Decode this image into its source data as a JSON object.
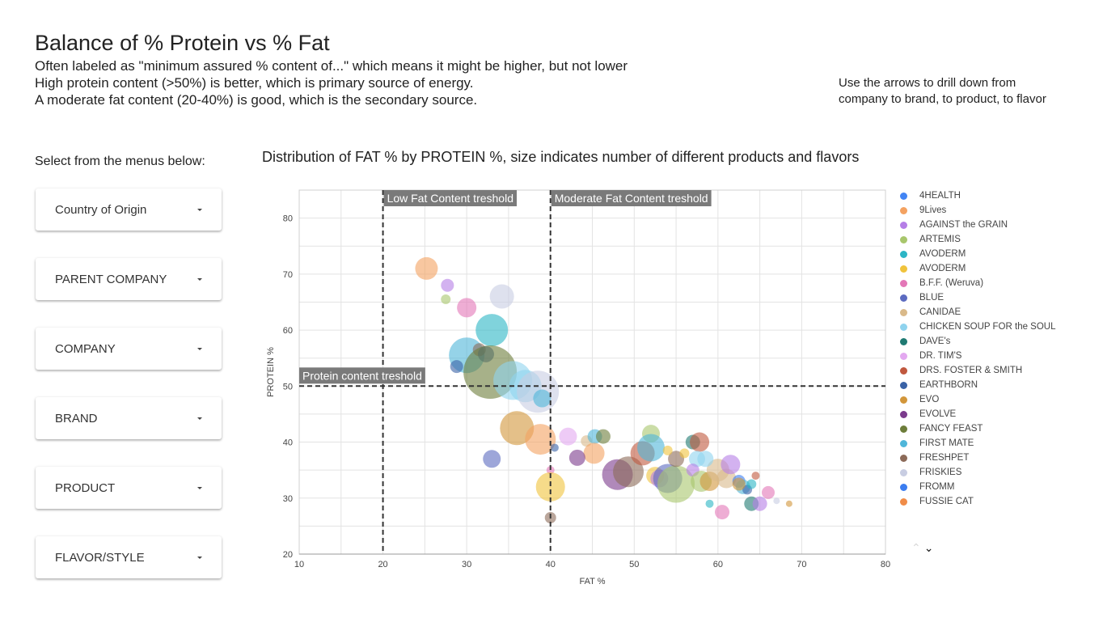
{
  "header": {
    "title": "Balance of % Protein vs % Fat",
    "line1": "Often labeled as \"minimum assured % content of...\" which means it might be higher, but not lower",
    "line2": "High protein content (>50%) is better, which is primary source of energy.",
    "line3": "A moderate fat content (20-40%) is good, which is the secondary source.",
    "hint1": "Use the arrows to drill down from",
    "hint2": "company to brand, to product, to flavor"
  },
  "filters": {
    "label": "Select from the menus below:",
    "items": [
      "Country of Origin",
      "PARENT COMPANY",
      "COMPANY",
      "BRAND",
      "PRODUCT",
      "FLAVOR/STYLE"
    ]
  },
  "chart_data": {
    "type": "scatter",
    "title": "Distribution of FAT % by PROTEIN %, size indicates number of different products and flavors",
    "xlabel": "FAT %",
    "ylabel": "PROTEIN %",
    "xlim": [
      10,
      80
    ],
    "ylim": [
      20,
      85
    ],
    "xticks": [
      10,
      20,
      30,
      40,
      50,
      60,
      70,
      80
    ],
    "yticks": [
      20,
      30,
      40,
      50,
      60,
      70,
      80
    ],
    "grid": true,
    "legend": "right",
    "reference_lines": [
      {
        "axis": "x",
        "value": 20,
        "label": "Low Fat Content treshold"
      },
      {
        "axis": "x",
        "value": 40,
        "label": "Moderate Fat Content treshold"
      },
      {
        "axis": "y",
        "value": 50,
        "label": "Protein content treshold"
      }
    ],
    "series": [
      {
        "name": "4HEALTH",
        "color": "#4285f4"
      },
      {
        "name": "9Lives",
        "color": "#f4a261"
      },
      {
        "name": "AGAINST the GRAIN",
        "color": "#b57ee6"
      },
      {
        "name": "ARTEMIS",
        "color": "#a8c66c"
      },
      {
        "name": "AVODERM",
        "color": "#2cb5c5"
      },
      {
        "name": "AVODERM",
        "color": "#f0c33c"
      },
      {
        "name": "B.F.F. (Weruva)",
        "color": "#e377b7"
      },
      {
        "name": "BLUE",
        "color": "#5c6bc0"
      },
      {
        "name": "CANIDAE",
        "color": "#d9b98a"
      },
      {
        "name": "CHICKEN SOUP FOR the SOUL",
        "color": "#8fd3ee"
      },
      {
        "name": "DAVE's",
        "color": "#1f7a72"
      },
      {
        "name": "DR. TIM'S",
        "color": "#e3a8f0"
      },
      {
        "name": "DRS. FOSTER & SMITH",
        "color": "#c0583e"
      },
      {
        "name": "EARTHBORN",
        "color": "#3a62a6"
      },
      {
        "name": "EVO",
        "color": "#d2963a"
      },
      {
        "name": "EVOLVE",
        "color": "#7b3b8c"
      },
      {
        "name": "FANCY FEAST",
        "color": "#6d7d3a"
      },
      {
        "name": "FIRST MATE",
        "color": "#4fb6d9"
      },
      {
        "name": "FRESHPET",
        "color": "#8c6a58"
      },
      {
        "name": "FRISKIES",
        "color": "#c8cde2"
      },
      {
        "name": "FROMM",
        "color": "#3b7df0"
      },
      {
        "name": "FUSSIE CAT",
        "color": "#f08c48"
      }
    ],
    "points": [
      {
        "x": 25.2,
        "y": 71,
        "s": 14,
        "c": 1
      },
      {
        "x": 27.7,
        "y": 68,
        "s": 8,
        "c": 2
      },
      {
        "x": 27.5,
        "y": 65.5,
        "s": 6,
        "c": 3
      },
      {
        "x": 30.0,
        "y": 64,
        "s": 12,
        "c": 6
      },
      {
        "x": 34.2,
        "y": 66,
        "s": 15,
        "c": 19
      },
      {
        "x": 33.0,
        "y": 60,
        "s": 20,
        "c": 4
      },
      {
        "x": 30.0,
        "y": 55.5,
        "s": 22,
        "c": 17
      },
      {
        "x": 31.5,
        "y": 56.5,
        "s": 8,
        "c": 18
      },
      {
        "x": 32.3,
        "y": 55.7,
        "s": 10,
        "c": 13
      },
      {
        "x": 28.8,
        "y": 53.5,
        "s": 8,
        "c": 13
      },
      {
        "x": 32.8,
        "y": 52.5,
        "s": 33,
        "c": 16
      },
      {
        "x": 35.5,
        "y": 51,
        "s": 24,
        "c": 9
      },
      {
        "x": 37.0,
        "y": 50,
        "s": 20,
        "c": 9
      },
      {
        "x": 38.5,
        "y": 49,
        "s": 26,
        "c": 19
      },
      {
        "x": 39.0,
        "y": 47.8,
        "s": 11,
        "c": 17
      },
      {
        "x": 36.0,
        "y": 42.5,
        "s": 21,
        "c": 14
      },
      {
        "x": 38.8,
        "y": 40.5,
        "s": 19,
        "c": 1
      },
      {
        "x": 40.5,
        "y": 39,
        "s": 5,
        "c": 13
      },
      {
        "x": 33.0,
        "y": 37,
        "s": 11,
        "c": 7
      },
      {
        "x": 40.0,
        "y": 35,
        "s": 5,
        "c": 6
      },
      {
        "x": 40.0,
        "y": 32,
        "s": 18,
        "c": 5
      },
      {
        "x": 40.0,
        "y": 26.5,
        "s": 7,
        "c": 18
      },
      {
        "x": 42.1,
        "y": 41,
        "s": 11,
        "c": 11
      },
      {
        "x": 44.3,
        "y": 40.2,
        "s": 7,
        "c": 8
      },
      {
        "x": 45.3,
        "y": 41,
        "s": 9,
        "c": 17
      },
      {
        "x": 46.3,
        "y": 41,
        "s": 9,
        "c": 16
      },
      {
        "x": 45.2,
        "y": 38,
        "s": 13,
        "c": 1
      },
      {
        "x": 43.2,
        "y": 37.2,
        "s": 10,
        "c": 15
      },
      {
        "x": 48.0,
        "y": 34.2,
        "s": 19,
        "c": 15
      },
      {
        "x": 49.3,
        "y": 34.7,
        "s": 19,
        "c": 18
      },
      {
        "x": 51.0,
        "y": 38,
        "s": 15,
        "c": 12
      },
      {
        "x": 52.0,
        "y": 41.5,
        "s": 11,
        "c": 3
      },
      {
        "x": 52.0,
        "y": 39,
        "s": 17,
        "c": 17
      },
      {
        "x": 52.5,
        "y": 34,
        "s": 11,
        "c": 5
      },
      {
        "x": 53.0,
        "y": 33.5,
        "s": 11,
        "c": 2
      },
      {
        "x": 54.0,
        "y": 33.5,
        "s": 18,
        "c": 7
      },
      {
        "x": 55.0,
        "y": 32.5,
        "s": 23,
        "c": 3
      },
      {
        "x": 55.0,
        "y": 37,
        "s": 10,
        "c": 18
      },
      {
        "x": 54.0,
        "y": 38.5,
        "s": 6,
        "c": 5
      },
      {
        "x": 57.0,
        "y": 40,
        "s": 9,
        "c": 10
      },
      {
        "x": 57.8,
        "y": 40,
        "s": 12,
        "c": 12
      },
      {
        "x": 57.5,
        "y": 37,
        "s": 10,
        "c": 9
      },
      {
        "x": 57.0,
        "y": 35,
        "s": 8,
        "c": 2
      },
      {
        "x": 58.0,
        "y": 33,
        "s": 13,
        "c": 3
      },
      {
        "x": 59.0,
        "y": 33,
        "s": 12,
        "c": 14
      },
      {
        "x": 60.0,
        "y": 35,
        "s": 14,
        "c": 8
      },
      {
        "x": 61.0,
        "y": 33.5,
        "s": 12,
        "c": 8
      },
      {
        "x": 61.5,
        "y": 36,
        "s": 12,
        "c": 2
      },
      {
        "x": 62.5,
        "y": 33,
        "s": 8,
        "c": 20
      },
      {
        "x": 63.0,
        "y": 32,
        "s": 9,
        "c": 17
      },
      {
        "x": 63.5,
        "y": 31.5,
        "s": 6,
        "c": 13
      },
      {
        "x": 64.0,
        "y": 32.5,
        "s": 6,
        "c": 4
      },
      {
        "x": 64.5,
        "y": 34,
        "s": 5,
        "c": 12
      },
      {
        "x": 64.0,
        "y": 29,
        "s": 9,
        "c": 10
      },
      {
        "x": 65.0,
        "y": 29,
        "s": 9,
        "c": 2
      },
      {
        "x": 66.0,
        "y": 31,
        "s": 8,
        "c": 6
      },
      {
        "x": 67.0,
        "y": 29.5,
        "s": 4,
        "c": 19
      },
      {
        "x": 68.5,
        "y": 29,
        "s": 4,
        "c": 14
      },
      {
        "x": 59.0,
        "y": 29,
        "s": 5,
        "c": 4
      },
      {
        "x": 60.5,
        "y": 27.5,
        "s": 9,
        "c": 6
      },
      {
        "x": 62.5,
        "y": 32.5,
        "s": 8,
        "c": 14
      },
      {
        "x": 56.0,
        "y": 38,
        "s": 6,
        "c": 5
      },
      {
        "x": 58.5,
        "y": 37,
        "s": 10,
        "c": 9
      }
    ]
  },
  "nav": {
    "up": "⌃",
    "down": "⌄"
  }
}
